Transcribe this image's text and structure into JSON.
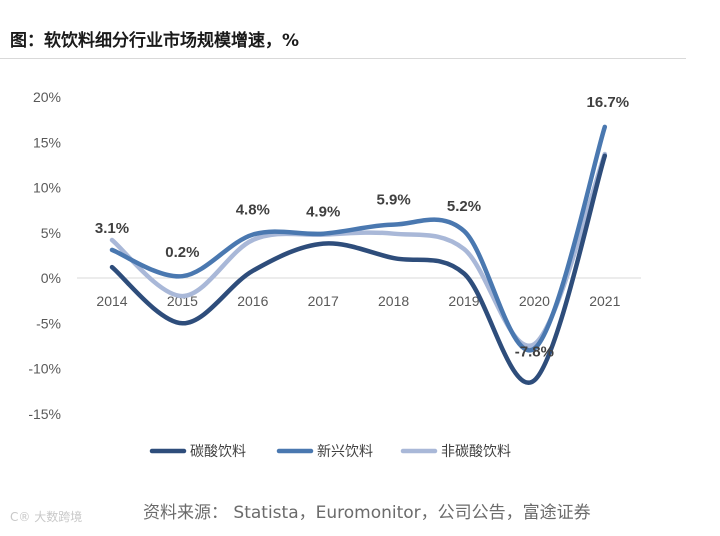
{
  "page": {
    "title": "图：软饮料细分行业市场规模增速，%",
    "source": "资料来源： Statista，Euromonitor，公司公告，富途证券",
    "watermark": "C® 大数跨境"
  },
  "chart_data": {
    "type": "line",
    "title": "图：软饮料细分行业市场规模增速，%",
    "xlabel": "",
    "ylabel": "",
    "ylim": [
      -15,
      20
    ],
    "yticks": [
      20,
      15,
      10,
      5,
      0,
      -5,
      -10,
      -15
    ],
    "ytick_labels": [
      "20%",
      "15%",
      "10%",
      "5%",
      "0%",
      "-5%",
      "-10%",
      "-15%"
    ],
    "categories": [
      "2014",
      "2015",
      "2016",
      "2017",
      "2018",
      "2019",
      "2020",
      "2021"
    ],
    "series": [
      {
        "name": "碳酸饮料",
        "color": "#2e4d7b",
        "values": [
          1.2,
          -5.0,
          0.8,
          3.8,
          2.2,
          0.5,
          -11.3,
          13.5
        ]
      },
      {
        "name": "新兴饮料",
        "color": "#4a78b0",
        "values": [
          3.1,
          0.2,
          4.8,
          4.9,
          5.9,
          5.2,
          -7.8,
          16.7
        ]
      },
      {
        "name": "非碳酸饮料",
        "color": "#a9b8d8",
        "values": [
          4.2,
          -2.0,
          4.2,
          4.8,
          4.9,
          3.2,
          -7.3,
          13.7
        ]
      }
    ],
    "annotations": [
      "3.1%",
      "0.2%",
      "4.8%",
      "4.9%",
      "5.9%",
      "5.2%",
      "-7.8%",
      "16.7%"
    ],
    "legend_position": "bottom",
    "grid": false
  }
}
